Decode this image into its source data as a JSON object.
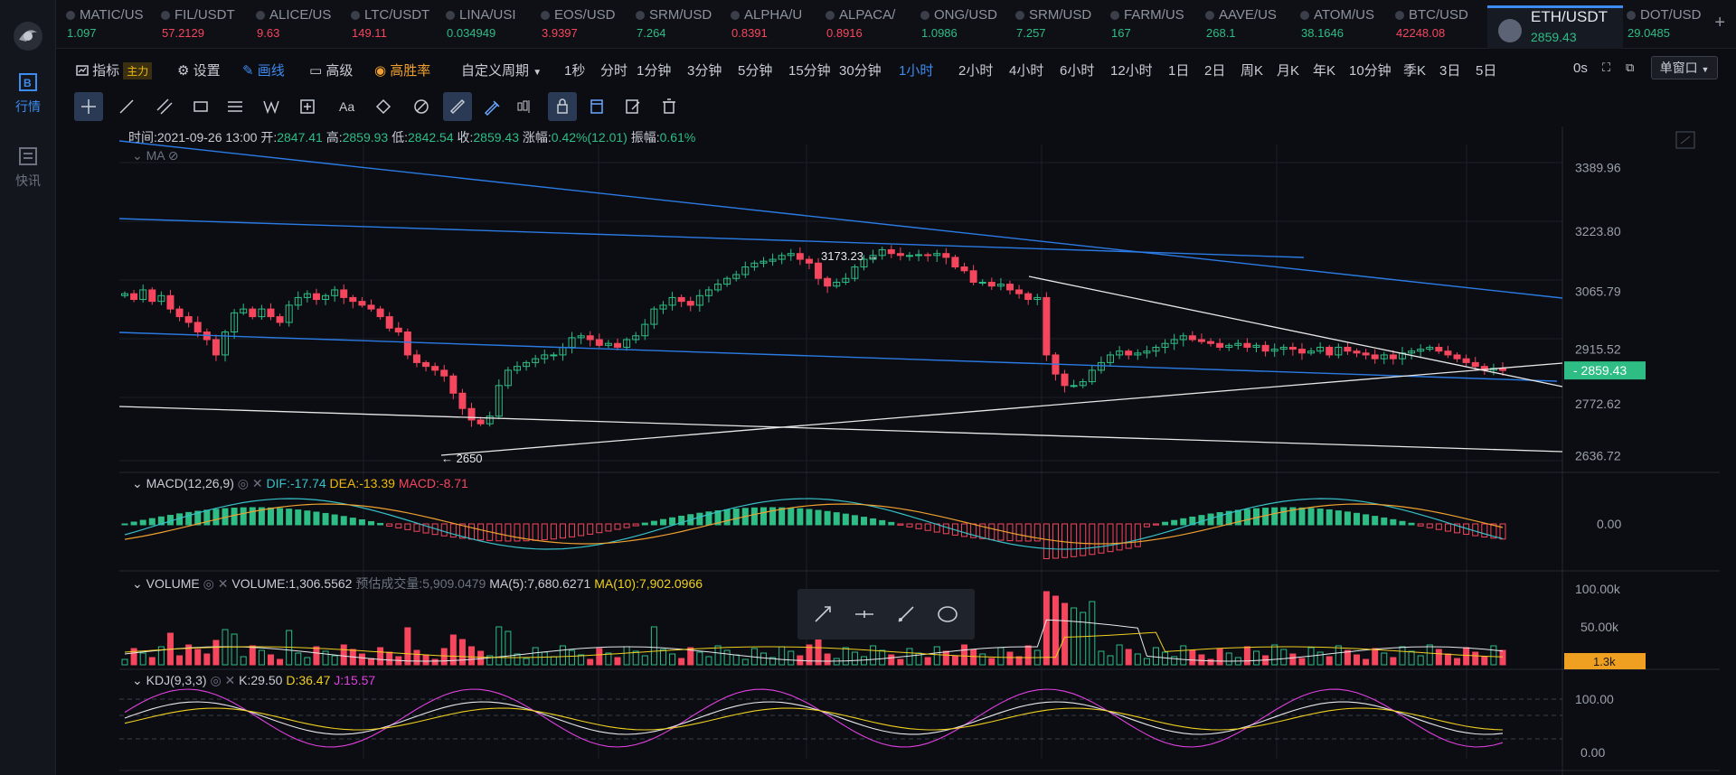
{
  "sidebar": {
    "items": [
      {
        "label": "行情",
        "icon": "market-icon",
        "active": true
      },
      {
        "label": "快讯",
        "icon": "news-icon",
        "active": false
      }
    ]
  },
  "tickers": [
    {
      "symbol": "MATIC/US",
      "price": "1.097",
      "dir": "up"
    },
    {
      "symbol": "FIL/USDT",
      "price": "57.2129",
      "dir": "down"
    },
    {
      "symbol": "ALICE/US",
      "price": "9.63",
      "dir": "down"
    },
    {
      "symbol": "LTC/USDT",
      "price": "149.11",
      "dir": "down"
    },
    {
      "symbol": "LINA/USI",
      "price": "0.034949",
      "dir": "up"
    },
    {
      "symbol": "EOS/USD",
      "price": "3.9397",
      "dir": "down"
    },
    {
      "symbol": "SRM/USD",
      "price": "7.264",
      "dir": "up"
    },
    {
      "symbol": "ALPHA/U",
      "price": "0.8391",
      "dir": "down"
    },
    {
      "symbol": "ALPACA/",
      "price": "0.8916",
      "dir": "down"
    },
    {
      "symbol": "ONG/USD",
      "price": "1.0986",
      "dir": "up"
    },
    {
      "symbol": "SRM/USD",
      "price": "7.257",
      "dir": "up"
    },
    {
      "symbol": "FARM/US",
      "price": "167",
      "dir": "up"
    },
    {
      "symbol": "AAVE/US",
      "price": "268.1",
      "dir": "up"
    },
    {
      "symbol": "ATOM/US",
      "price": "38.1646",
      "dir": "up"
    },
    {
      "symbol": "BTC/USD",
      "price": "42248.08",
      "dir": "down"
    },
    {
      "symbol": "ETH/USDT",
      "price": "2859.43",
      "dir": "up",
      "active": true
    },
    {
      "symbol": "DOT/USD",
      "price": "29.0485",
      "dir": "up"
    }
  ],
  "toolbar": {
    "indicator": "指标",
    "indicator_badge": "主力",
    "settings": "设置",
    "draw": "画线",
    "advanced": "高级",
    "win_rate": "高胜率",
    "custom_period": "自定义周期",
    "periods": [
      "1秒",
      "分时",
      "1分钟",
      "3分钟",
      "5分钟",
      "15分钟",
      "30分钟",
      "1小时",
      "2小时",
      "4小时",
      "6小时",
      "12小时",
      "1日",
      "2日",
      "周K",
      "月K",
      "年K",
      "10分钟",
      "季K",
      "3日",
      "5日"
    ],
    "active_period": "1小时",
    "countdown": "0s",
    "window_mode": "单窗口"
  },
  "drawing_tools": [
    "crosshair-tool",
    "line-tool",
    "channel-tool",
    "rect-tool",
    "fib-tool",
    "wave-tool",
    "measure-tool",
    "text-tool",
    "magnet-tool",
    "magnet-strong-tool",
    "ruler-tool",
    "draw-mode-tool",
    "pattern-tool",
    "lock-tool",
    "show-drawings-tool",
    "edit-tool",
    "delete-tool"
  ],
  "ohlc": {
    "time_label": "时间:",
    "time": "2021-09-26 13:00",
    "open_label": "开:",
    "open": "2847.41",
    "high_label": "高:",
    "high": "2859.93",
    "low_label": "低:",
    "low": "2842.54",
    "close_label": "收:",
    "close": "2859.43",
    "change_label": "涨幅:",
    "change": "0.42%(12.01)",
    "amp_label": "振幅:",
    "amp": "0.61%"
  },
  "ma_label": "MA",
  "price_axis": [
    "3389.96",
    "3223.80",
    "3065.79",
    "2915.52",
    "2859.43",
    "2772.62",
    "2636.72"
  ],
  "annotations": {
    "high": "3173.23",
    "low": "2650"
  },
  "macd": {
    "name": "MACD(12,26,9)",
    "dif": "DIF:-17.74",
    "dea": "DEA:-13.39",
    "macd": "MACD:-8.71",
    "axis": "0.00"
  },
  "volume": {
    "name": "VOLUME",
    "vol": "VOLUME:1,306.5562",
    "est": "预估成交量:5,909.0479",
    "ma5": "MA(5):7,680.6271",
    "ma10": "MA(10):7,902.0966",
    "axis": [
      "100.00k",
      "50.00k",
      "1.3k"
    ]
  },
  "kdj": {
    "name": "KDJ(9,3,3)",
    "k": "K:29.50",
    "d": "D:36.47",
    "j": "J:15.57",
    "axis": [
      "100.00",
      "0.00"
    ]
  },
  "colors": {
    "up": "#2ebd85",
    "down": "#f6465d",
    "accent": "#3d8cf0",
    "trend_blue": "#2b7be4",
    "white_line": "#e8e8e8"
  },
  "chart_data": {
    "type": "candlestick",
    "interval": "1小时",
    "ylim": [
      2600,
      3450
    ],
    "closes": [
      3060,
      3045,
      3070,
      3040,
      3055,
      3020,
      3000,
      2985,
      2960,
      2940,
      2900,
      2960,
      3010,
      3020,
      3000,
      3020,
      3000,
      2985,
      3030,
      3050,
      3060,
      3045,
      3055,
      3070,
      3050,
      3040,
      3030,
      3020,
      3000,
      2970,
      2960,
      2900,
      2880,
      2870,
      2860,
      2845,
      2800,
      2760,
      2730,
      2720,
      2740,
      2820,
      2860,
      2870,
      2880,
      2890,
      2900,
      2900,
      2920,
      2945,
      2950,
      2940,
      2925,
      2930,
      2920,
      2940,
      2950,
      2980,
      3020,
      3030,
      3050,
      3040,
      3030,
      3055,
      3070,
      3085,
      3100,
      3110,
      3130,
      3140,
      3145,
      3150,
      3160,
      3165,
      3150,
      3140,
      3100,
      3080,
      3090,
      3100,
      3130,
      3150,
      3160,
      3175,
      3165,
      3160,
      3160,
      3162,
      3160,
      3165,
      3155,
      3130,
      3120,
      3090,
      3090,
      3080,
      3085,
      3070,
      3060,
      3045,
      3050,
      2900,
      2850,
      2820,
      2820,
      2830,
      2860,
      2880,
      2900,
      2910,
      2900,
      2905,
      2910,
      2920,
      2930,
      2940,
      2950,
      2940,
      2935,
      2930,
      2920,
      2925,
      2930,
      2920,
      2925,
      2910,
      2915,
      2920,
      2915,
      2905,
      2910,
      2920,
      2900,
      2920,
      2910,
      2905,
      2900,
      2890,
      2900,
      2890,
      2905,
      2910,
      2915,
      2920,
      2910,
      2900,
      2890,
      2880,
      2870,
      2860,
      2865,
      2859.43
    ]
  }
}
